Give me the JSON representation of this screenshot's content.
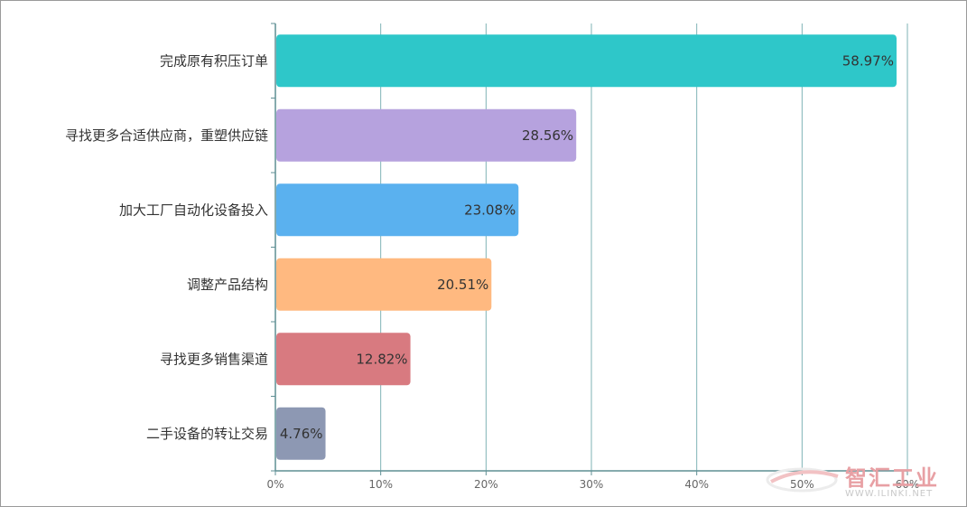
{
  "chart_data": {
    "type": "bar",
    "orientation": "horizontal",
    "categories": [
      "完成原有积压订单",
      "寻找更多合适供应商，重塑供应链",
      "加大工厂自动化设备投入",
      "调整产品结构",
      "寻找更多销售渠道",
      "二手设备的转让交易"
    ],
    "values": [
      58.97,
      28.56,
      23.08,
      20.51,
      12.82,
      4.76
    ],
    "value_labels": [
      "58.97%",
      "28.56%",
      "23.08%",
      "20.51%",
      "12.82%",
      "4.76%"
    ],
    "colors": [
      "#2ec7c9",
      "#b6a2de",
      "#5ab1ef",
      "#ffb980",
      "#d87a80",
      "#8d98b3"
    ],
    "xlim": [
      0,
      60
    ],
    "xticks": [
      0,
      10,
      20,
      30,
      40,
      50,
      60
    ],
    "xtick_labels": [
      "0%",
      "10%",
      "20%",
      "30%",
      "40%",
      "50%",
      "60%"
    ],
    "grid": true,
    "title": "",
    "xlabel": "",
    "ylabel": ""
  },
  "watermark": {
    "title": "智汇工业",
    "url": "WWW.ILINKI.NET"
  }
}
